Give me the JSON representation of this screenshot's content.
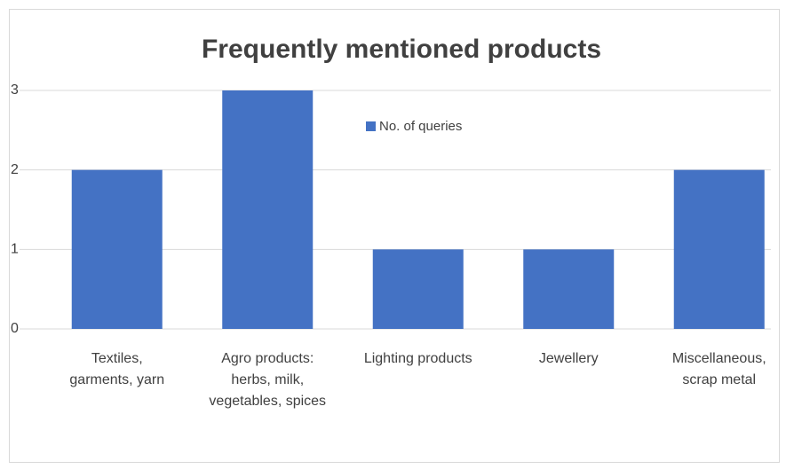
{
  "chart_data": {
    "type": "bar",
    "title": "Frequently mentioned products",
    "categories": [
      "Textiles, garments, yarn",
      "Agro products: herbs, milk, vegetables, spices",
      "Lighting products",
      "Jewellery",
      "Miscellaneous, scrap metal"
    ],
    "series": [
      {
        "name": "No. of queries",
        "color": "#4472c4",
        "values": [
          2,
          3,
          1,
          1,
          2
        ]
      }
    ],
    "ylim": [
      0,
      3
    ],
    "yticks": [
      0,
      1,
      2,
      3
    ],
    "grid": true,
    "legend": "top"
  }
}
